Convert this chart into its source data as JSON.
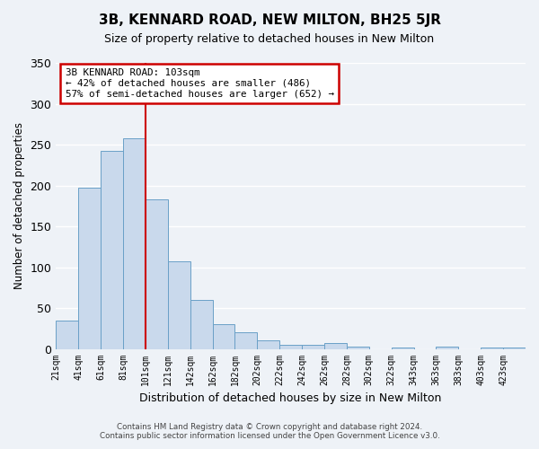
{
  "title": "3B, KENNARD ROAD, NEW MILTON, BH25 5JR",
  "subtitle": "Size of property relative to detached houses in New Milton",
  "xlabel": "Distribution of detached houses by size in New Milton",
  "ylabel": "Number of detached properties",
  "bar_labels": [
    "21sqm",
    "41sqm",
    "61sqm",
    "81sqm",
    "101sqm",
    "121sqm",
    "142sqm",
    "162sqm",
    "182sqm",
    "202sqm",
    "222sqm",
    "242sqm",
    "262sqm",
    "282sqm",
    "302sqm",
    "322sqm",
    "343sqm",
    "363sqm",
    "383sqm",
    "403sqm",
    "423sqm"
  ],
  "bar_values": [
    35,
    197,
    242,
    258,
    183,
    107,
    60,
    30,
    20,
    10,
    5,
    5,
    7,
    3,
    0,
    2,
    0,
    3,
    0,
    2,
    2
  ],
  "bar_color": "#c9d9ec",
  "bar_edge_color": "#6aa0c7",
  "vline_x": 4,
  "vline_color": "#cc0000",
  "ylim": [
    0,
    350
  ],
  "yticks": [
    0,
    50,
    100,
    150,
    200,
    250,
    300,
    350
  ],
  "annotation_title": "3B KENNARD ROAD: 103sqm",
  "annotation_line1": "← 42% of detached houses are smaller (486)",
  "annotation_line2": "57% of semi-detached houses are larger (652) →",
  "annotation_box_color": "#cc0000",
  "footer_line1": "Contains HM Land Registry data © Crown copyright and database right 2024.",
  "footer_line2": "Contains public sector information licensed under the Open Government Licence v3.0.",
  "background_color": "#eef2f7",
  "grid_color": "#ffffff"
}
